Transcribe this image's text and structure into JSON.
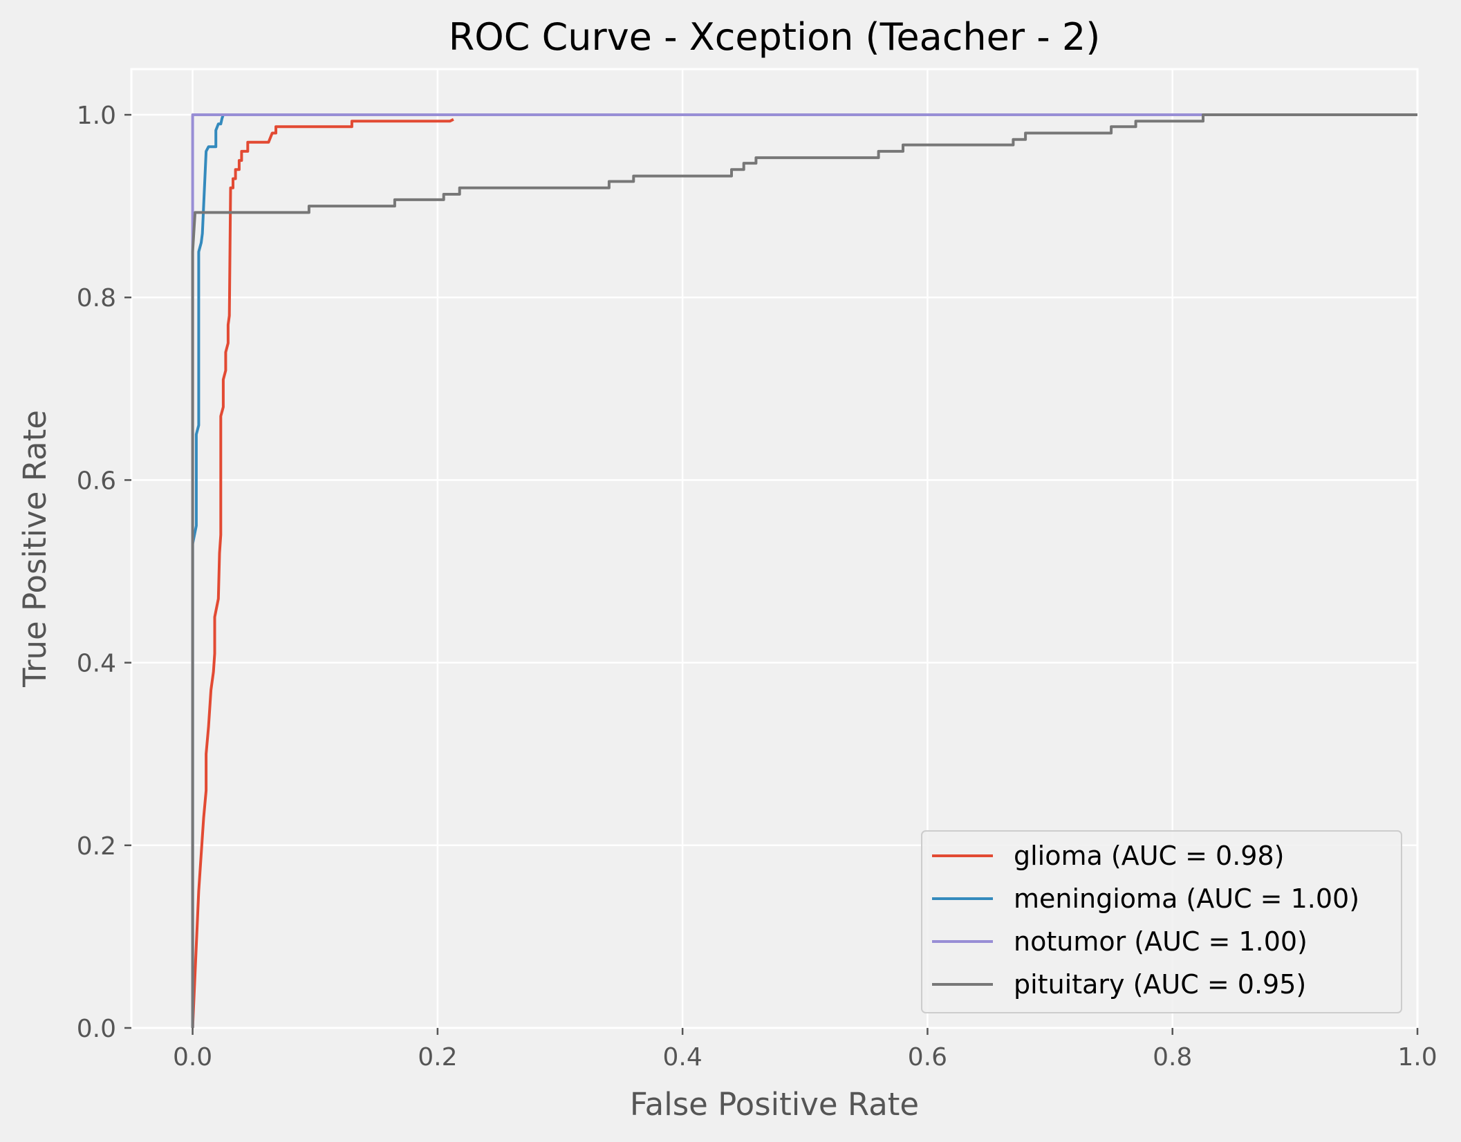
{
  "chart_data": {
    "type": "line",
    "title": "ROC Curve - Xception (Teacher - 2)",
    "xlabel": "False Positive Rate",
    "ylabel": "True Positive Rate",
    "xlim": [
      -0.05,
      1.0
    ],
    "ylim": [
      0.0,
      1.05
    ],
    "xticks": [
      0.0,
      0.2,
      0.4,
      0.6,
      0.8,
      1.0
    ],
    "yticks": [
      0.0,
      0.2,
      0.4,
      0.6,
      0.8,
      1.0
    ],
    "xtick_labels": [
      "0.0",
      "0.2",
      "0.4",
      "0.6",
      "0.8",
      "1.0"
    ],
    "ytick_labels": [
      "0.0",
      "0.2",
      "0.4",
      "0.6",
      "0.8",
      "1.0"
    ],
    "grid": true,
    "legend_position": "lower-right",
    "series": [
      {
        "name": "glioma (AUC = 0.98)",
        "color": "#E24A33",
        "points": [
          [
            0.0,
            0.0
          ],
          [
            0.005,
            0.15
          ],
          [
            0.009,
            0.23
          ],
          [
            0.011,
            0.26
          ],
          [
            0.011,
            0.3
          ],
          [
            0.013,
            0.33
          ],
          [
            0.015,
            0.37
          ],
          [
            0.017,
            0.39
          ],
          [
            0.018,
            0.41
          ],
          [
            0.018,
            0.45
          ],
          [
            0.021,
            0.47
          ],
          [
            0.022,
            0.52
          ],
          [
            0.023,
            0.54
          ],
          [
            0.023,
            0.67
          ],
          [
            0.025,
            0.68
          ],
          [
            0.025,
            0.71
          ],
          [
            0.027,
            0.72
          ],
          [
            0.027,
            0.74
          ],
          [
            0.029,
            0.75
          ],
          [
            0.029,
            0.77
          ],
          [
            0.03,
            0.78
          ],
          [
            0.031,
            0.92
          ],
          [
            0.033,
            0.92
          ],
          [
            0.033,
            0.93
          ],
          [
            0.035,
            0.93
          ],
          [
            0.035,
            0.94
          ],
          [
            0.038,
            0.94
          ],
          [
            0.038,
            0.95
          ],
          [
            0.04,
            0.95
          ],
          [
            0.04,
            0.96
          ],
          [
            0.045,
            0.96
          ],
          [
            0.045,
            0.97
          ],
          [
            0.062,
            0.97
          ],
          [
            0.065,
            0.98
          ],
          [
            0.068,
            0.98
          ],
          [
            0.068,
            0.987
          ],
          [
            0.13,
            0.987
          ],
          [
            0.13,
            0.993
          ],
          [
            0.21,
            0.993
          ],
          [
            0.213,
            0.995
          ]
        ]
      },
      {
        "name": "meningioma (AUC = 1.00)",
        "color": "#348ABD",
        "points": [
          [
            0.0,
            0.0
          ],
          [
            0.0,
            0.53
          ],
          [
            0.003,
            0.55
          ],
          [
            0.003,
            0.65
          ],
          [
            0.005,
            0.66
          ],
          [
            0.005,
            0.85
          ],
          [
            0.007,
            0.86
          ],
          [
            0.008,
            0.87
          ],
          [
            0.009,
            0.9
          ],
          [
            0.01,
            0.93
          ],
          [
            0.011,
            0.96
          ],
          [
            0.013,
            0.965
          ],
          [
            0.019,
            0.965
          ],
          [
            0.019,
            0.983
          ],
          [
            0.021,
            0.99
          ],
          [
            0.023,
            0.99
          ],
          [
            0.024,
            0.996
          ],
          [
            0.025,
            1.0
          ],
          [
            1.0,
            1.0
          ]
        ]
      },
      {
        "name": "notumor (AUC = 1.00)",
        "color": "#988ED5",
        "points": [
          [
            0.0,
            0.0
          ],
          [
            0.0,
            1.0
          ],
          [
            0.825,
            1.0
          ]
        ]
      },
      {
        "name": "pituitary (AUC = 0.95)",
        "color": "#777777",
        "points": [
          [
            0.0,
            0.0
          ],
          [
            0.0,
            0.85
          ],
          [
            0.002,
            0.893
          ],
          [
            0.095,
            0.893
          ],
          [
            0.095,
            0.9
          ],
          [
            0.165,
            0.9
          ],
          [
            0.165,
            0.907
          ],
          [
            0.205,
            0.907
          ],
          [
            0.205,
            0.913
          ],
          [
            0.218,
            0.913
          ],
          [
            0.218,
            0.92
          ],
          [
            0.34,
            0.92
          ],
          [
            0.34,
            0.927
          ],
          [
            0.36,
            0.927
          ],
          [
            0.36,
            0.933
          ],
          [
            0.44,
            0.933
          ],
          [
            0.44,
            0.94
          ],
          [
            0.45,
            0.94
          ],
          [
            0.45,
            0.947
          ],
          [
            0.46,
            0.947
          ],
          [
            0.46,
            0.953
          ],
          [
            0.56,
            0.953
          ],
          [
            0.56,
            0.96
          ],
          [
            0.58,
            0.96
          ],
          [
            0.58,
            0.967
          ],
          [
            0.67,
            0.967
          ],
          [
            0.67,
            0.973
          ],
          [
            0.68,
            0.973
          ],
          [
            0.68,
            0.98
          ],
          [
            0.75,
            0.98
          ],
          [
            0.75,
            0.987
          ],
          [
            0.77,
            0.987
          ],
          [
            0.77,
            0.993
          ],
          [
            0.825,
            0.993
          ],
          [
            0.825,
            1.0
          ],
          [
            1.0,
            1.0
          ]
        ]
      }
    ]
  }
}
